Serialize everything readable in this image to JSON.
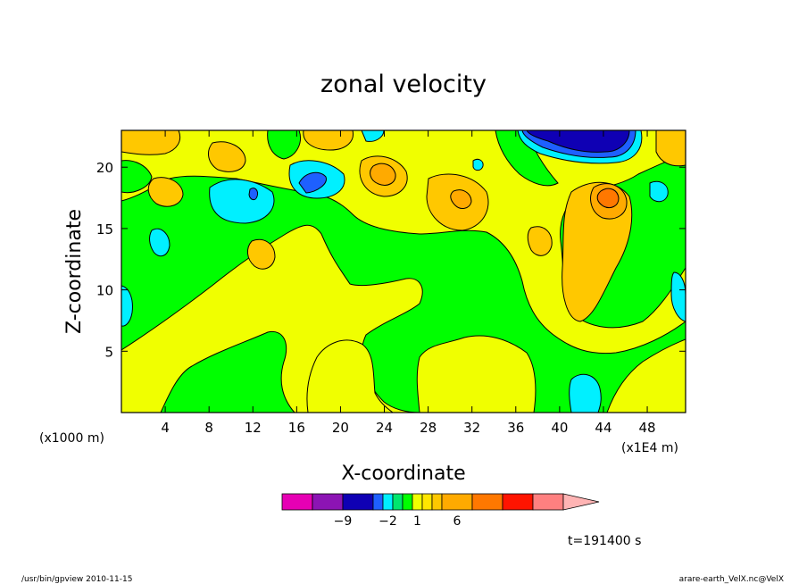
{
  "chart_data": {
    "type": "heatmap",
    "title": "zonal velocity",
    "xlabel": "X-coordinate",
    "ylabel": "Z-coordinate",
    "x_unit_left": "(x1000 m)",
    "x_unit_right": "(x1E4 m)",
    "xlim": [
      0,
      51.5
    ],
    "ylim": [
      0,
      23
    ],
    "xticks": [
      4,
      8,
      12,
      16,
      20,
      24,
      28,
      32,
      36,
      40,
      44,
      48
    ],
    "yticks": [
      5,
      10,
      15,
      20
    ],
    "colorbar": {
      "colors": [
        "#e600b4",
        "#8c14b4",
        "#0f00b4",
        "#1e60ff",
        "#00f0ff",
        "#00e66e",
        "#00ff00",
        "#f0ff00",
        "#ffe600",
        "#ffc800",
        "#ffaa00",
        "#ff7800",
        "#ff1400",
        "#ff8080",
        "#ffb4b4"
      ],
      "tick_labels": [
        {
          "label": "−9",
          "boundary": 2
        },
        {
          "label": "−2",
          "boundary": 4.5
        },
        {
          "label": "1",
          "boundary": 7.5
        },
        {
          "label": "6",
          "boundary": 10.5
        }
      ]
    },
    "time_label": "t=191400 s",
    "footer_left": "/usr/bin/gpview   2010-11-15",
    "footer_right": "arare-earth_VelX.nc@VelX"
  },
  "colors": {
    "plot_background": "#00ff00"
  }
}
